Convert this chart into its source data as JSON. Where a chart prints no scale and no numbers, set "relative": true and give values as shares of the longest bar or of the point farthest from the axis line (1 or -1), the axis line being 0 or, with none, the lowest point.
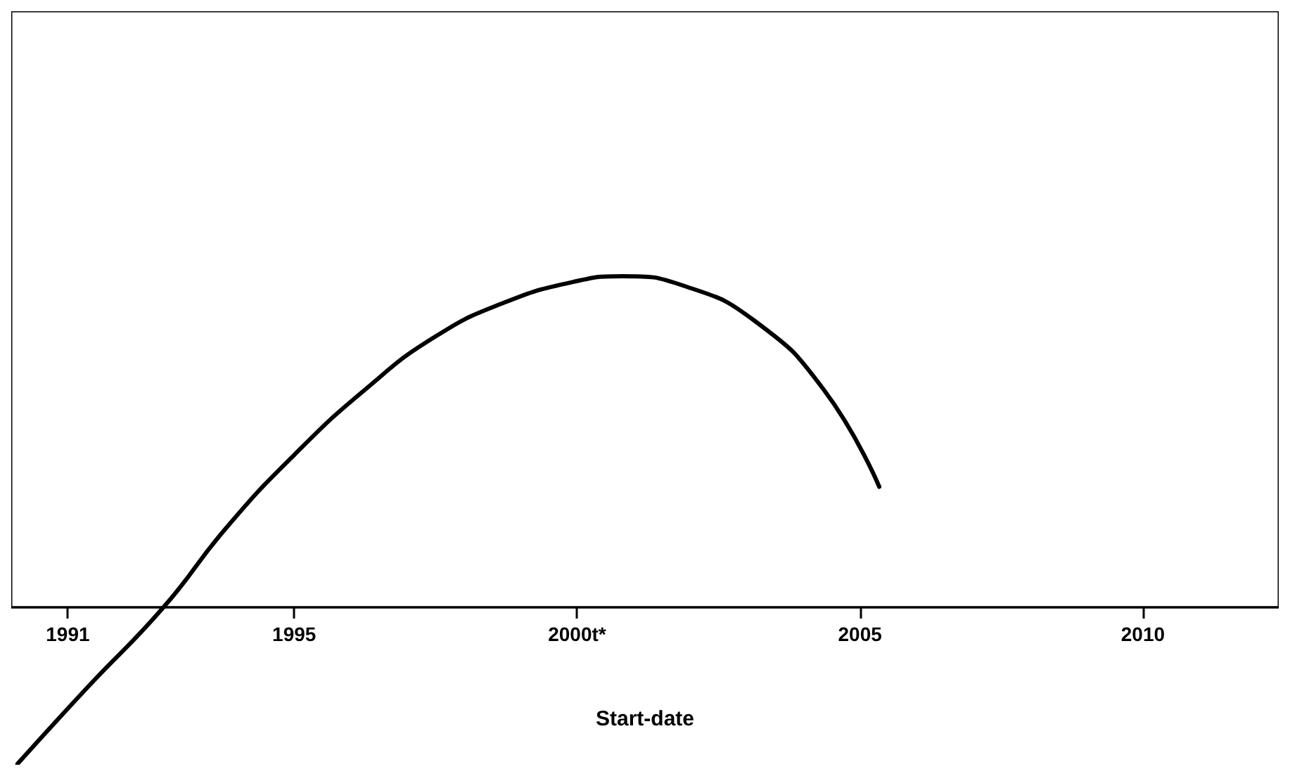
{
  "chart_data": {
    "type": "line",
    "xlabel": "Start-date",
    "relative": true,
    "x": [
      1990.11,
      1991.34,
      1992.69,
      1993.8,
      1995.0,
      1996.25,
      1997.48,
      1998.71,
      1999.94,
      2000.8,
      2001.9,
      2003.13,
      2004.36,
      2005.34
    ],
    "series": [
      {
        "color": "#000000",
        "values": [
          -0.473,
          -0.243,
          0,
          0.24,
          0.46,
          0.657,
          0.816,
          0.92,
          0.983,
          1,
          0.97,
          0.866,
          0.657,
          0.364
        ]
      }
    ],
    "xlim": [
      1990,
      2012.4
    ],
    "xticks": [
      1991,
      1995,
      {
        "value": 2000,
        "label": "2000t*"
      },
      2005,
      2010
    ],
    "marker": "none",
    "line_style": "solid",
    "grid": false
  }
}
